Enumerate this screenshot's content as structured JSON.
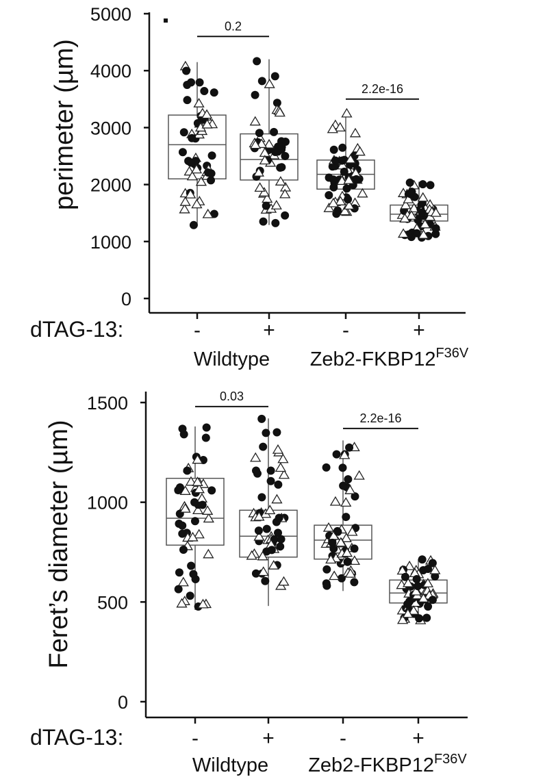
{
  "chart_data": [
    {
      "type": "box",
      "ylabel": "perimeter (µm)",
      "ylim": [
        0,
        5000
      ],
      "yticks": [
        "0",
        "1000",
        "2000",
        "3000",
        "4000",
        "5000"
      ],
      "row_label": "dTAG-13:",
      "conditions": [
        "-",
        "+",
        "-",
        "+"
      ],
      "groups": [
        {
          "label": "Wildtype",
          "sup": "",
          "span": [
            0,
            1
          ]
        },
        {
          "label": "Zeb2-FKBP12",
          "sup": "F36V",
          "span": [
            2,
            3
          ]
        }
      ],
      "comparisons": [
        {
          "from": 0,
          "to": 1,
          "label": "0.2",
          "y": 4600
        },
        {
          "from": 2,
          "to": 3,
          "label": "2.2e-16",
          "y": 3500
        }
      ],
      "boxes": [
        {
          "q1": 2100,
          "median": 2700,
          "q3": 3220,
          "whisker_low": 1280,
          "whisker_high": 4150,
          "n": 55
        },
        {
          "q1": 2080,
          "median": 2440,
          "q3": 2890,
          "whisker_low": 1290,
          "whisker_high": 4200,
          "n": 55
        },
        {
          "q1": 1920,
          "median": 2180,
          "q3": 2430,
          "whisker_low": 1480,
          "whisker_high": 3280,
          "n": 60
        },
        {
          "q1": 1360,
          "median": 1480,
          "q3": 1640,
          "whisker_low": 1060,
          "whisker_high": 2050,
          "n": 60
        }
      ]
    },
    {
      "type": "box",
      "ylabel": "Feret’s diameter (µm)",
      "ylim": [
        0,
        1500
      ],
      "yticks": [
        "0",
        "500",
        "1000",
        "1500"
      ],
      "row_label": "dTAG-13:",
      "conditions": [
        "-",
        "+",
        "-",
        "+"
      ],
      "groups": [
        {
          "label": "Wildtype",
          "sup": "",
          "span": [
            0,
            1
          ]
        },
        {
          "label": "Zeb2-FKBP12",
          "sup": "F36V",
          "span": [
            2,
            3
          ]
        }
      ],
      "comparisons": [
        {
          "from": 0,
          "to": 1,
          "label": "0.03",
          "y": 1480
        },
        {
          "from": 2,
          "to": 3,
          "label": "2.2e-16",
          "y": 1370
        }
      ],
      "boxes": [
        {
          "q1": 785,
          "median": 920,
          "q3": 1120,
          "whisker_low": 460,
          "whisker_high": 1380,
          "n": 55
        },
        {
          "q1": 725,
          "median": 830,
          "q3": 960,
          "whisker_low": 480,
          "whisker_high": 1420,
          "n": 55
        },
        {
          "q1": 715,
          "median": 810,
          "q3": 885,
          "whisker_low": 555,
          "whisker_high": 1310,
          "n": 60
        },
        {
          "q1": 495,
          "median": 545,
          "q3": 610,
          "whisker_low": 400,
          "whisker_high": 715,
          "n": 60
        }
      ]
    }
  ]
}
